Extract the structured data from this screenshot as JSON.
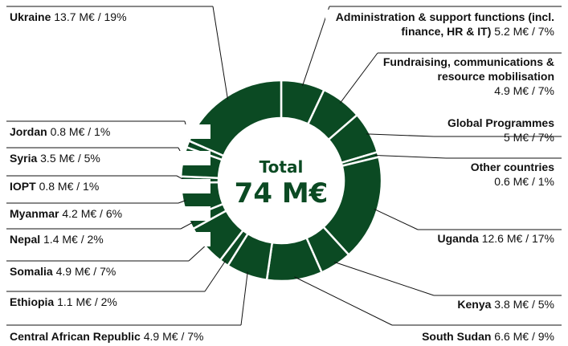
{
  "chart_data": {
    "type": "donut",
    "center_title": "Total",
    "center_value": "74 M€",
    "color": "#0b4a23",
    "categories": [
      "Administration & support functions (incl. finance, HR & IT)",
      "Fundraising, communications & resource mobilisation",
      "Global Programmes",
      "Other countries",
      "Uganda",
      "Kenya",
      "South Sudan",
      "Central African Republic",
      "Ethiopia",
      "Somalia",
      "Nepal",
      "Myanmar",
      "IOPT",
      "Syria",
      "Jordan",
      "Ukraine"
    ],
    "values": [
      5.2,
      4.9,
      5,
      0.6,
      12.6,
      3.8,
      6.6,
      4.9,
      1.1,
      4.9,
      1.4,
      4.2,
      0.8,
      3.5,
      0.8,
      13.7
    ],
    "value_labels": [
      "5.2 M€ / 7%",
      "4.9 M€ / 7%",
      "5 M€ / 7%",
      "0.6 M€ / 1%",
      "12.6 M€ / 17%",
      "3.8 M€ / 5%",
      "6.6 M€ / 9%",
      "4.9 M€ / 7%",
      "1.1 M€ / 2%",
      "4.9 M€ / 7%",
      "1.4 M€ / 2%",
      "4.2 M€ / 6%",
      "0.8 M€ / 1%",
      "3.5 M€ / 5%",
      "0.8 M€ / 1%",
      "13.7 M€ / 19%"
    ]
  }
}
